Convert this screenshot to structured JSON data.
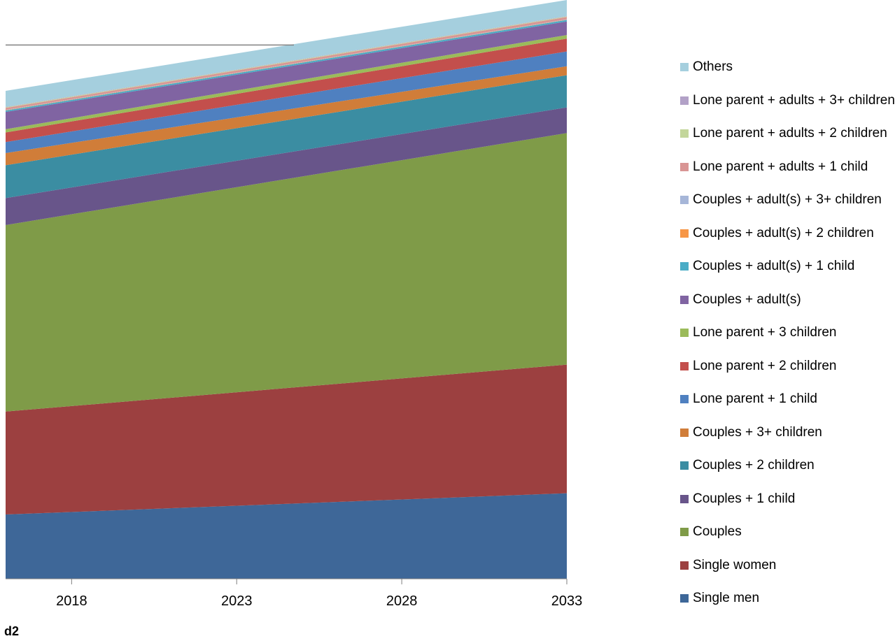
{
  "chart_data": {
    "type": "area",
    "stacked": true,
    "x": [
      2016,
      2033
    ],
    "x_ticks": [
      2018,
      2023,
      2028,
      2033
    ],
    "grid": false,
    "legend_position": "right",
    "series": [
      {
        "name": "Single men",
        "color": "#3e6798",
        "values": [
          1000,
          1330
        ]
      },
      {
        "name": "Single women",
        "color": "#9c4040",
        "values": [
          1600,
          2000
        ]
      },
      {
        "name": "Couples",
        "color": "#7f9b48",
        "values": [
          2900,
          3600
        ]
      },
      {
        "name": "Couples + 1 child",
        "color": "#68558a",
        "values": [
          420,
          400
        ]
      },
      {
        "name": "Couples + 2 children",
        "color": "#3b8da2",
        "values": [
          510,
          500
        ]
      },
      {
        "name": "Couples + 3+ children",
        "color": "#d07d39",
        "values": [
          190,
          140
        ]
      },
      {
        "name": "Lone parent + 1 child",
        "color": "#4f80c0",
        "values": [
          170,
          230
        ]
      },
      {
        "name": "Lone parent + 2 children",
        "color": "#c34f4c",
        "values": [
          150,
          200
        ]
      },
      {
        "name": "Lone parent + 3 children",
        "color": "#9bbb5a",
        "values": [
          50,
          55
        ]
      },
      {
        "name": "Couples + adult(s)",
        "color": "#8064a2",
        "values": [
          270,
          210
        ]
      },
      {
        "name": "Couples + adult(s) + 1 child",
        "color": "#4aacc6",
        "values": [
          22,
          25
        ]
      },
      {
        "name": "Couples + adult(s) + 2 children",
        "color": "#f79646",
        "values": [
          5,
          5
        ]
      },
      {
        "name": "Couples + adult(s) + 3+ children",
        "color": "#a6b6d8",
        "values": [
          5,
          5
        ]
      },
      {
        "name": "Lone parent + adults + 1 child",
        "color": "#d99594",
        "values": [
          30,
          35
        ]
      },
      {
        "name": "Lone parent + adults + 2 children",
        "color": "#c3d69b",
        "values": [
          10,
          10
        ]
      },
      {
        "name": "Lone parent + adults + 3+ children",
        "color": "#b2a1c7",
        "values": [
          5,
          5
        ]
      },
      {
        "name": "Others",
        "color": "#a5cfde",
        "values": [
          250,
          250
        ]
      }
    ],
    "ylim": [
      0,
      9000
    ],
    "reference_line": 8300,
    "reference_line_color": "#808080"
  },
  "footer_label": "d2"
}
